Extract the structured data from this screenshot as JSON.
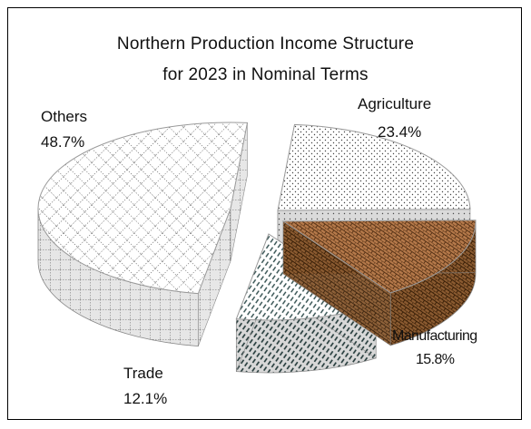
{
  "chart_data": {
    "type": "pie",
    "title": "Northern Production Income Structure",
    "subtitle": "for 2023 in Nominal Terms",
    "slices": [
      {
        "label": "Agriculture",
        "value": 23.4,
        "value_label": "23.4%",
        "pattern": "dots"
      },
      {
        "label": "Manufacturing",
        "value": 15.8,
        "value_label": "15.8%",
        "pattern": "brick-brown"
      },
      {
        "label": "Trade",
        "value": 12.1,
        "value_label": "12.1%",
        "pattern": "diagonal-dashes"
      },
      {
        "label": "Others",
        "value": 48.7,
        "value_label": "48.7%",
        "pattern": "dotted-grid"
      }
    ],
    "colors": {
      "manufacturing": "#b5794a",
      "pattern_ink": "#333333",
      "side_shade": "#cfcfcf"
    },
    "legend": "none",
    "style": "3d exploded pie"
  }
}
